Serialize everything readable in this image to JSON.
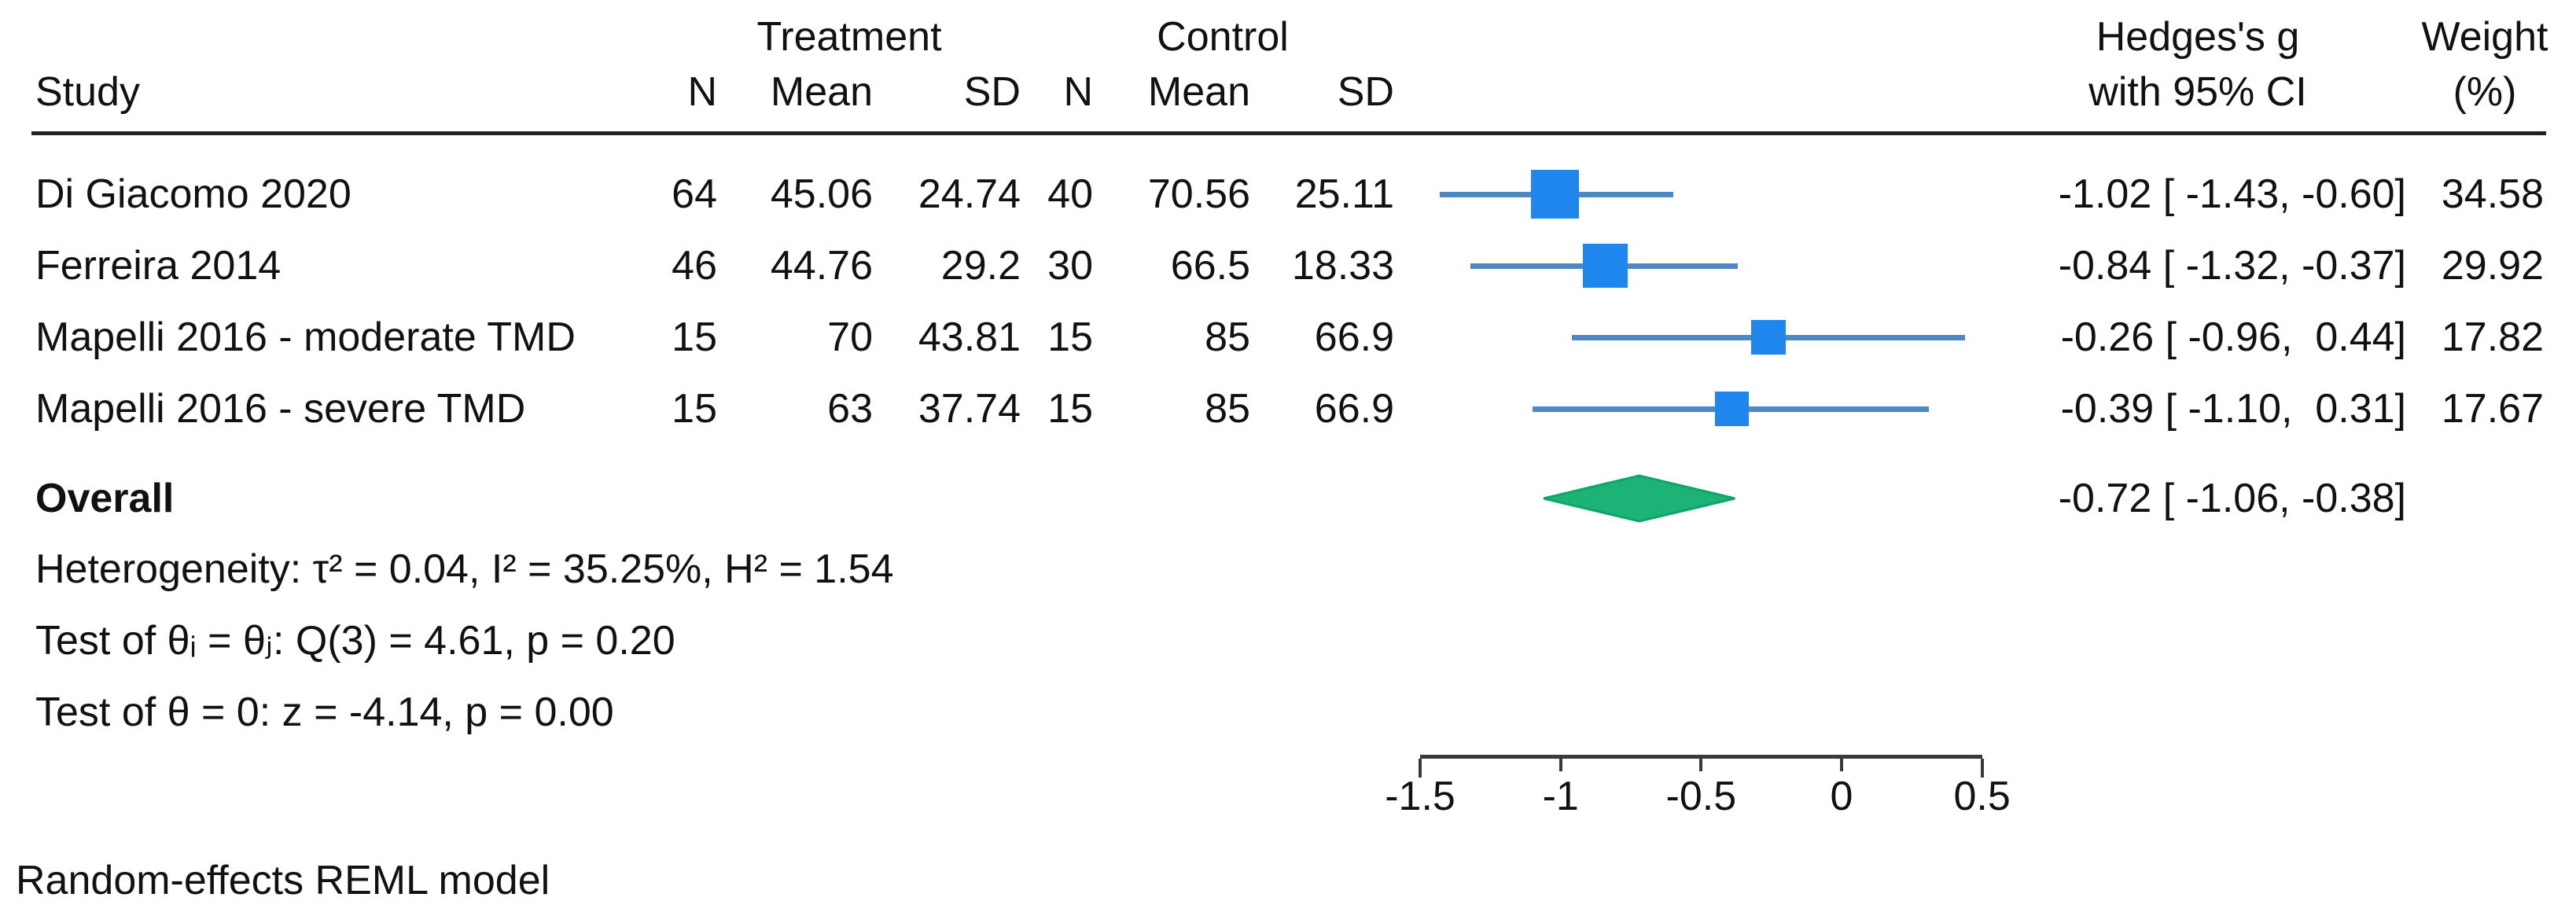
{
  "table_headers": {
    "study": "Study",
    "treatment_group": "Treatment",
    "control_group": "Control",
    "n": "N",
    "mean": "Mean",
    "sd": "SD",
    "effect_line1": "Hedges's g",
    "effect_line2": "with 95% CI",
    "weight_line1": "Weight",
    "weight_line2": "(%)"
  },
  "chart_data": {
    "type": "forest",
    "effect_measure": "Hedges's g",
    "x_axis": {
      "range": [
        -1.5,
        0.5
      ],
      "ticks": [
        -1.5,
        -1,
        -0.5,
        0,
        0.5
      ],
      "tick_labels": [
        "-1.5",
        "-1",
        "-0.5",
        "0",
        "0.5"
      ]
    },
    "studies": [
      {
        "study": "Di Giacomo 2020",
        "treatment": {
          "n": "64",
          "mean": "45.06",
          "sd": "24.74"
        },
        "control": {
          "n": "40",
          "mean": "70.56",
          "sd": "25.11"
        },
        "effect": -1.02,
        "ci_low": -1.43,
        "ci_high": -0.6,
        "ci_text": "-1.02 [ -1.43, -0.60]",
        "weight": 34.58,
        "weight_text": "34.58"
      },
      {
        "study": "Ferreira 2014",
        "treatment": {
          "n": "46",
          "mean": "44.76",
          "sd": "29.2"
        },
        "control": {
          "n": "30",
          "mean": "66.5",
          "sd": "18.33"
        },
        "effect": -0.84,
        "ci_low": -1.32,
        "ci_high": -0.37,
        "ci_text": "-0.84 [ -1.32, -0.37]",
        "weight": 29.92,
        "weight_text": "29.92"
      },
      {
        "study": "Mapelli 2016 - moderate TMD",
        "treatment": {
          "n": "15",
          "mean": "70",
          "sd": "43.81"
        },
        "control": {
          "n": "15",
          "mean": "85",
          "sd": "66.9"
        },
        "effect": -0.26,
        "ci_low": -0.96,
        "ci_high": 0.44,
        "ci_text": "-0.26 [ -0.96,  0.44]",
        "weight": 17.82,
        "weight_text": "17.82"
      },
      {
        "study": "Mapelli 2016 - severe TMD",
        "treatment": {
          "n": "15",
          "mean": "63",
          "sd": "37.74"
        },
        "control": {
          "n": "15",
          "mean": "85",
          "sd": "66.9"
        },
        "effect": -0.39,
        "ci_low": -1.1,
        "ci_high": 0.31,
        "ci_text": "-0.39 [ -1.10,  0.31]",
        "weight": 17.67,
        "weight_text": "17.67"
      }
    ],
    "overall": {
      "label": "Overall",
      "effect": -0.72,
      "ci_low": -1.06,
      "ci_high": -0.38,
      "ci_text": "-0.72 [ -1.06, -0.38]"
    },
    "heterogeneity": "Heterogeneity: τ² = 0.04, I² = 35.25%, H² = 1.54",
    "test_equality": "Test of θᵢ = θⱼ: Q(3) = 4.61, p = 0.20",
    "test_zero": "Test of θ = 0: z = -4.14, p = 0.00",
    "footnote": "Random-effects REML model"
  },
  "colors": {
    "marker": "#1e86ec",
    "ci_line": "#4d87c4",
    "diamond_fill": "#1db377",
    "diamond_edge": "#0fa468",
    "axis": "#3a3a3a",
    "text": "#111111",
    "divider": "#222222"
  }
}
